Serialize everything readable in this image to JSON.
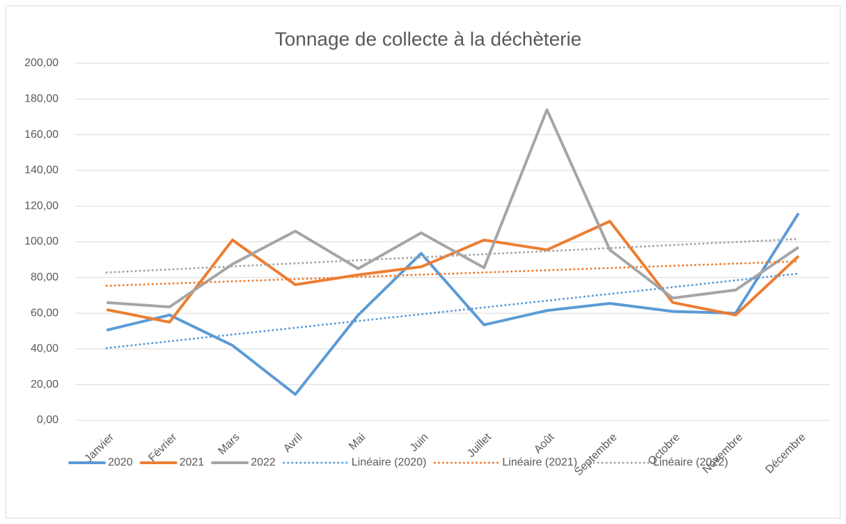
{
  "chart_data": {
    "type": "line",
    "title": "Tonnage de collecte à la déchèterie",
    "categories": [
      "Janvier",
      "Février",
      "Mars",
      "Avril",
      "Mai",
      "Juin",
      "Juillet",
      "Août",
      "Septembre",
      "Octobre",
      "Novembre",
      "Décembre"
    ],
    "series": [
      {
        "name": "2020",
        "color": "#5b9bd5",
        "values": [
          50.5,
          59,
          42,
          14.5,
          59,
          93.5,
          53.5,
          61.5,
          65.5,
          61,
          60,
          116
        ]
      },
      {
        "name": "2021",
        "color": "#ed7d31",
        "values": [
          62,
          55,
          101,
          76,
          81.5,
          86,
          101,
          95.5,
          111.5,
          66,
          59,
          92
        ]
      },
      {
        "name": "2022",
        "color": "#a5a5a5",
        "values": [
          66,
          63.5,
          87.5,
          106,
          85,
          105,
          85.5,
          174,
          95.5,
          68.5,
          73,
          97
        ]
      }
    ],
    "trendlines": [
      {
        "name": "Linéaire (2020)",
        "series": 0,
        "kind": "linear",
        "style": "dotted"
      },
      {
        "name": "Linéaire (2021)",
        "series": 1,
        "kind": "linear",
        "style": "dotted"
      },
      {
        "name": "Linéaire (2022)",
        "series": 2,
        "kind": "linear",
        "style": "dotted"
      }
    ],
    "ylim": [
      0,
      200
    ],
    "yticks": [
      {
        "value": 0,
        "label": "0,00"
      },
      {
        "value": 20,
        "label": "20,00"
      },
      {
        "value": 40,
        "label": "40,00"
      },
      {
        "value": 60,
        "label": "60,00"
      },
      {
        "value": 80,
        "label": "80,00"
      },
      {
        "value": 100,
        "label": "100,00"
      },
      {
        "value": 120,
        "label": "120,00"
      },
      {
        "value": 140,
        "label": "140,00"
      },
      {
        "value": 160,
        "label": "160,00"
      },
      {
        "value": 180,
        "label": "180,00"
      },
      {
        "value": 200,
        "label": "200,00"
      }
    ],
    "grid": true,
    "legend": "bottom"
  }
}
